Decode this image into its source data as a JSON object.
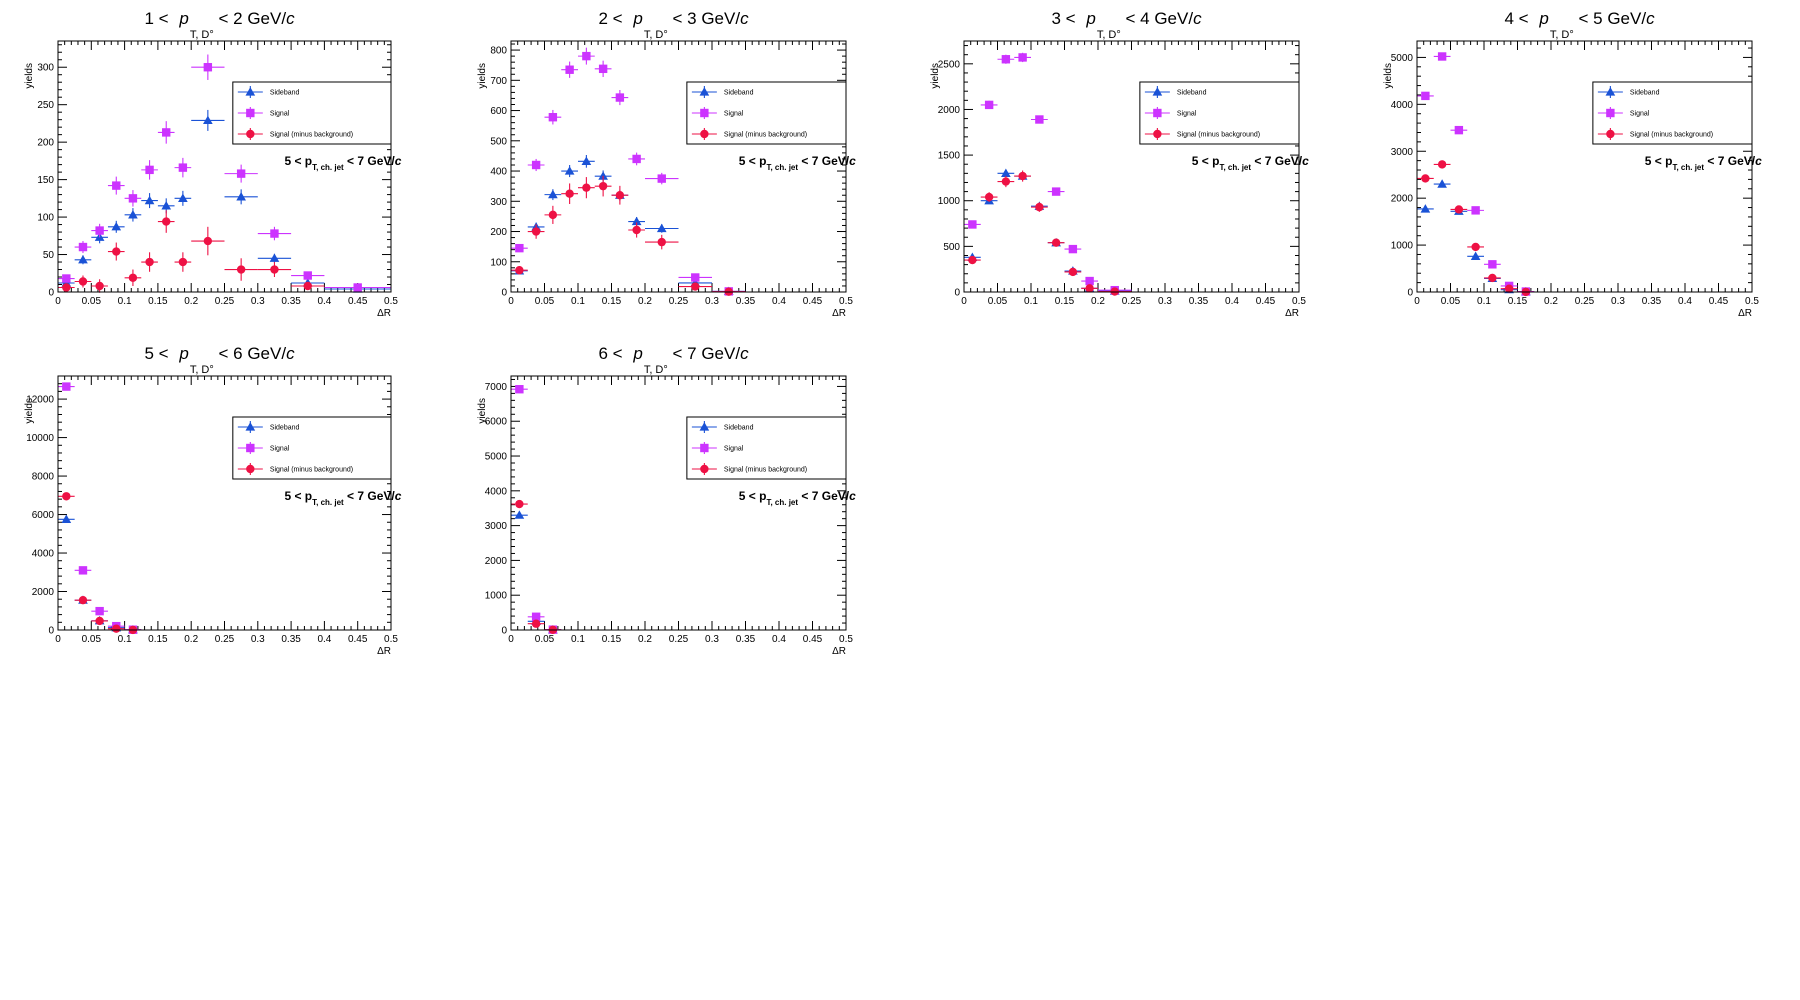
{
  "colors": {
    "sideband": "#1a52d6",
    "signal": "#cc33ff",
    "subtracted": "#ee1144"
  },
  "legend": [
    "Sideband",
    "Signal",
    "Signal (minus background)"
  ],
  "jet_label": {
    "main": "5 < p",
    "sub": "T, ch. jet",
    "tail": " < 7 GeV/",
    "unit": "c"
  },
  "chart_data": [
    {
      "type": "scatter",
      "title": {
        "pre": "1 < ",
        "var": "p",
        "sub": "T, D°",
        "post": " < 2 GeV/",
        "unit": "c"
      },
      "xlabel": "ΔR",
      "ylabel": "yields",
      "xlim": [
        0,
        0.5
      ],
      "ylim": [
        0,
        335
      ],
      "xticks": [
        "0",
        "0.05",
        "0.1",
        "0.15",
        "0.2",
        "0.25",
        "0.3",
        "0.35",
        "0.4",
        "0.45",
        "0.5"
      ],
      "yticks": [
        0,
        50,
        100,
        150,
        200,
        250,
        300
      ],
      "series": [
        {
          "name": "Sideband",
          "marker": "triangle",
          "x": [
            0.0125,
            0.0375,
            0.0625,
            0.0875,
            0.1125,
            0.1375,
            0.1625,
            0.1875,
            0.225,
            0.275,
            0.325,
            0.375,
            0.45
          ],
          "xerr": [
            0.0125,
            0.0125,
            0.0125,
            0.0125,
            0.0125,
            0.0125,
            0.0125,
            0.0125,
            0.025,
            0.025,
            0.025,
            0.025,
            0.05
          ],
          "y": [
            12,
            43,
            73,
            87,
            103,
            122,
            115,
            125,
            229,
            127,
            45,
            12,
            4
          ],
          "yerr": [
            4,
            6,
            8,
            8,
            9,
            10,
            10,
            10,
            14,
            10,
            6,
            3,
            2
          ]
        },
        {
          "name": "Signal",
          "marker": "square",
          "x": [
            0.0125,
            0.0375,
            0.0625,
            0.0875,
            0.1125,
            0.1375,
            0.1625,
            0.1875,
            0.225,
            0.275,
            0.325,
            0.375,
            0.45
          ],
          "xerr": [
            0.0125,
            0.0125,
            0.0125,
            0.0125,
            0.0125,
            0.0125,
            0.0125,
            0.0125,
            0.025,
            0.025,
            0.025,
            0.025,
            0.05
          ],
          "y": [
            18,
            60,
            82,
            142,
            125,
            163,
            213,
            166,
            300,
            158,
            78,
            22,
            6
          ],
          "yerr": [
            5,
            8,
            9,
            12,
            11,
            13,
            15,
            13,
            17,
            12,
            9,
            5,
            2
          ]
        },
        {
          "name": "Signal (minus background)",
          "marker": "circle",
          "x": [
            0.0125,
            0.0375,
            0.0625,
            0.0875,
            0.1125,
            0.1375,
            0.1625,
            0.1875,
            0.225,
            0.275,
            0.325,
            0.375
          ],
          "xerr": [
            0.0125,
            0.0125,
            0.0125,
            0.0125,
            0.0125,
            0.0125,
            0.0125,
            0.0125,
            0.025,
            0.025,
            0.025,
            0.025
          ],
          "y": [
            6,
            14,
            8,
            54,
            19,
            40,
            94,
            40,
            68,
            30,
            30,
            8
          ],
          "yerr": [
            5,
            8,
            9,
            12,
            11,
            13,
            15,
            13,
            19,
            15,
            10,
            5
          ]
        }
      ]
    },
    {
      "type": "scatter",
      "title": {
        "pre": "2 < ",
        "var": "p",
        "sub": "T, D°",
        "post": " < 3 GeV/",
        "unit": "c"
      },
      "xlabel": "ΔR",
      "ylabel": "yields",
      "xlim": [
        0,
        0.5
      ],
      "ylim": [
        0,
        830
      ],
      "xticks": [
        "0",
        "0.05",
        "0.1",
        "0.15",
        "0.2",
        "0.25",
        "0.3",
        "0.35",
        "0.4",
        "0.45",
        "0.5"
      ],
      "yticks": [
        0,
        100,
        200,
        300,
        400,
        500,
        600,
        700,
        800
      ],
      "series": [
        {
          "name": "Sideband",
          "marker": "triangle",
          "x": [
            0.0125,
            0.0375,
            0.0625,
            0.0875,
            0.1125,
            0.1375,
            0.1625,
            0.1875,
            0.225,
            0.275,
            0.325
          ],
          "xerr": [
            0.0125,
            0.0125,
            0.0125,
            0.0125,
            0.0125,
            0.0125,
            0.0125,
            0.0125,
            0.025,
            0.025,
            0.025
          ],
          "y": [
            70,
            215,
            322,
            400,
            432,
            383,
            320,
            233,
            210,
            30,
            2
          ],
          "yerr": [
            8,
            14,
            18,
            20,
            21,
            19,
            18,
            15,
            14,
            5,
            2
          ]
        },
        {
          "name": "Signal",
          "marker": "square",
          "x": [
            0.0125,
            0.0375,
            0.0625,
            0.0875,
            0.1125,
            0.1375,
            0.1625,
            0.1875,
            0.225,
            0.275,
            0.325
          ],
          "xerr": [
            0.0125,
            0.0125,
            0.0125,
            0.0125,
            0.0125,
            0.0125,
            0.0125,
            0.0125,
            0.025,
            0.025,
            0.025
          ],
          "y": [
            145,
            420,
            578,
            735,
            780,
            738,
            643,
            440,
            375,
            48,
            2
          ],
          "yerr": [
            12,
            20,
            24,
            27,
            28,
            27,
            25,
            21,
            19,
            7,
            2
          ]
        },
        {
          "name": "Signal (minus background)",
          "marker": "circle",
          "x": [
            0.0125,
            0.0375,
            0.0625,
            0.0875,
            0.1125,
            0.1375,
            0.1625,
            0.1875,
            0.225,
            0.275,
            0.325
          ],
          "xerr": [
            0.0125,
            0.0125,
            0.0125,
            0.0125,
            0.0125,
            0.0125,
            0.0125,
            0.0125,
            0.025,
            0.025,
            0.025
          ],
          "y": [
            72,
            200,
            255,
            325,
            345,
            350,
            320,
            205,
            165,
            18,
            1
          ],
          "yerr": [
            14,
            24,
            30,
            34,
            35,
            34,
            31,
            25,
            24,
            8,
            2
          ]
        }
      ]
    },
    {
      "type": "scatter",
      "title": {
        "pre": "3 < ",
        "var": "p",
        "sub": "T, D°",
        "post": " < 4 GeV/",
        "unit": "c"
      },
      "xlabel": "ΔR",
      "ylabel": "yields",
      "xlim": [
        0,
        0.5
      ],
      "ylim": [
        0,
        2750
      ],
      "xticks": [
        "0",
        "0.05",
        "0.1",
        "0.15",
        "0.2",
        "0.25",
        "0.3",
        "0.35",
        "0.4",
        "0.45",
        "0.5"
      ],
      "yticks": [
        0,
        500,
        1000,
        1500,
        2000,
        2500
      ],
      "series": [
        {
          "name": "Sideband",
          "marker": "triangle",
          "x": [
            0.0125,
            0.0375,
            0.0625,
            0.0875,
            0.1125,
            0.1375,
            0.1625,
            0.1875,
            0.225
          ],
          "xerr": [
            0.0125,
            0.0125,
            0.0125,
            0.0125,
            0.0125,
            0.0125,
            0.0125,
            0.0125,
            0.025
          ],
          "y": [
            380,
            1000,
            1300,
            1270,
            940,
            540,
            230,
            40,
            10
          ],
          "yerr": [
            20,
            30,
            35,
            35,
            30,
            22,
            15,
            6,
            3
          ]
        },
        {
          "name": "Signal",
          "marker": "square",
          "x": [
            0.0125,
            0.0375,
            0.0625,
            0.0875,
            0.1125,
            0.1375,
            0.1625,
            0.1875,
            0.225
          ],
          "xerr": [
            0.0125,
            0.0125,
            0.0125,
            0.0125,
            0.0125,
            0.0125,
            0.0125,
            0.0125,
            0.025
          ],
          "y": [
            740,
            2050,
            2550,
            2570,
            1890,
            1100,
            470,
            120,
            20
          ],
          "yerr": [
            27,
            45,
            50,
            51,
            43,
            33,
            22,
            11,
            4
          ]
        },
        {
          "name": "Signal (minus background)",
          "marker": "circle",
          "x": [
            0.0125,
            0.0375,
            0.0625,
            0.0875,
            0.1125,
            0.1375,
            0.1625,
            0.1875,
            0.225
          ],
          "xerr": [
            0.0125,
            0.0125,
            0.0125,
            0.0125,
            0.0125,
            0.0125,
            0.0125,
            0.0125,
            0.025
          ],
          "y": [
            350,
            1040,
            1210,
            1270,
            930,
            540,
            220,
            40,
            5
          ],
          "yerr": [
            34,
            54,
            61,
            61,
            52,
            40,
            27,
            13,
            5
          ]
        }
      ]
    },
    {
      "type": "scatter",
      "title": {
        "pre": "4 < ",
        "var": "p",
        "sub": "T, D°",
        "post": " < 5 GeV/",
        "unit": "c"
      },
      "xlabel": "ΔR",
      "ylabel": "yields",
      "xlim": [
        0,
        0.5
      ],
      "ylim": [
        0,
        5350
      ],
      "xticks": [
        "0",
        "0.05",
        "0.1",
        "0.15",
        "0.2",
        "0.25",
        "0.3",
        "0.35",
        "0.4",
        "0.45",
        "0.5"
      ],
      "yticks": [
        0,
        1000,
        2000,
        3000,
        4000,
        5000
      ],
      "series": [
        {
          "name": "Sideband",
          "marker": "triangle",
          "x": [
            0.0125,
            0.0375,
            0.0625,
            0.0875,
            0.1125,
            0.1375,
            0.1625
          ],
          "xerr": [
            0.0125,
            0.0125,
            0.0125,
            0.0125,
            0.0125,
            0.0125,
            0.0125
          ],
          "y": [
            1770,
            2300,
            1720,
            760,
            290,
            50,
            5
          ],
          "yerr": [
            42,
            48,
            41,
            28,
            17,
            7,
            2
          ]
        },
        {
          "name": "Signal",
          "marker": "square",
          "x": [
            0.0125,
            0.0375,
            0.0625,
            0.0875,
            0.1125,
            0.1375,
            0.1625
          ],
          "xerr": [
            0.0125,
            0.0125,
            0.0125,
            0.0125,
            0.0125,
            0.0125,
            0.0125
          ],
          "y": [
            4180,
            5020,
            3450,
            1740,
            590,
            130,
            10
          ],
          "yerr": [
            65,
            71,
            59,
            42,
            24,
            11,
            3
          ]
        },
        {
          "name": "Signal (minus background)",
          "marker": "circle",
          "x": [
            0.0125,
            0.0375,
            0.0625,
            0.0875,
            0.1125,
            0.1375,
            0.1625
          ],
          "xerr": [
            0.0125,
            0.0125,
            0.0125,
            0.0125,
            0.0125,
            0.0125,
            0.0125
          ],
          "y": [
            2420,
            2720,
            1760,
            960,
            300,
            70,
            2
          ],
          "yerr": [
            77,
            86,
            72,
            50,
            29,
            13,
            3
          ]
        }
      ]
    },
    {
      "type": "scatter",
      "title": {
        "pre": "5 < ",
        "var": "p",
        "sub": "T, D°",
        "post": " < 6 GeV/",
        "unit": "c"
      },
      "xlabel": "ΔR",
      "ylabel": "yields",
      "xlim": [
        0,
        0.5
      ],
      "ylim": [
        0,
        13200
      ],
      "xticks": [
        "0",
        "0.05",
        "0.1",
        "0.15",
        "0.2",
        "0.25",
        "0.3",
        "0.35",
        "0.4",
        "0.45",
        "0.5"
      ],
      "yticks": [
        0,
        2000,
        4000,
        6000,
        8000,
        10000,
        12000
      ],
      "series": [
        {
          "name": "Sideband",
          "marker": "triangle",
          "x": [
            0.0125,
            0.0375,
            0.0625,
            0.0875,
            0.1125
          ],
          "xerr": [
            0.0125,
            0.0125,
            0.0125,
            0.0125,
            0.0125
          ],
          "y": [
            5750,
            1550,
            480,
            120,
            10
          ],
          "yerr": [
            76,
            39,
            22,
            11,
            3
          ]
        },
        {
          "name": "Signal",
          "marker": "square",
          "x": [
            0.0125,
            0.0375,
            0.0625,
            0.0875,
            0.1125
          ],
          "xerr": [
            0.0125,
            0.0125,
            0.0125,
            0.0125,
            0.0125
          ],
          "y": [
            12650,
            3100,
            980,
            200,
            15
          ],
          "yerr": [
            112,
            56,
            31,
            14,
            4
          ]
        },
        {
          "name": "Signal (minus background)",
          "marker": "circle",
          "x": [
            0.0125,
            0.0375,
            0.0625,
            0.0875,
            0.1125
          ],
          "xerr": [
            0.0125,
            0.0125,
            0.0125,
            0.0125,
            0.0125
          ],
          "y": [
            6950,
            1550,
            470,
            70,
            5
          ],
          "yerr": [
            135,
            68,
            38,
            18,
            5
          ]
        }
      ]
    },
    {
      "type": "scatter",
      "title": {
        "pre": "6 < ",
        "var": "p",
        "sub": "T, D°",
        "post": " < 7 GeV/",
        "unit": "c"
      },
      "xlabel": "ΔR",
      "ylabel": "yields",
      "xlim": [
        0,
        0.5
      ],
      "ylim": [
        0,
        7300
      ],
      "xticks": [
        "0",
        "0.05",
        "0.1",
        "0.15",
        "0.2",
        "0.25",
        "0.3",
        "0.35",
        "0.4",
        "0.45",
        "0.5"
      ],
      "yticks": [
        0,
        1000,
        2000,
        3000,
        4000,
        5000,
        6000,
        7000
      ],
      "series": [
        {
          "name": "Sideband",
          "marker": "triangle",
          "x": [
            0.0125,
            0.0375,
            0.0625
          ],
          "xerr": [
            0.0125,
            0.0125,
            0.0125
          ],
          "y": [
            3300,
            250,
            5
          ],
          "yerr": [
            57,
            16,
            2
          ]
        },
        {
          "name": "Signal",
          "marker": "square",
          "x": [
            0.0125,
            0.0375,
            0.0625
          ],
          "xerr": [
            0.0125,
            0.0125,
            0.0125
          ],
          "y": [
            6920,
            380,
            10
          ],
          "yerr": [
            83,
            19,
            3
          ]
        },
        {
          "name": "Signal (minus background)",
          "marker": "circle",
          "x": [
            0.0125,
            0.0375,
            0.0625
          ],
          "xerr": [
            0.0125,
            0.0125,
            0.0125
          ],
          "y": [
            3620,
            180,
            5
          ],
          "yerr": [
            100,
            24,
            4
          ]
        }
      ]
    }
  ]
}
